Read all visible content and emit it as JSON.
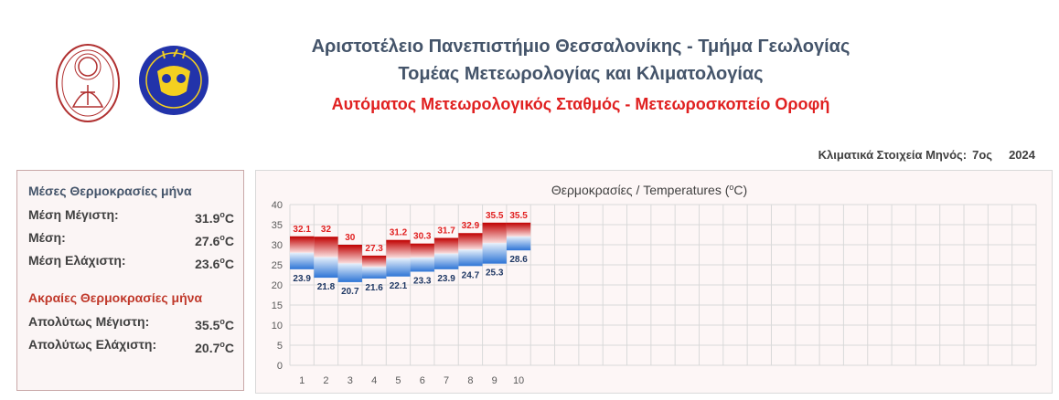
{
  "header": {
    "line1": "Αριστοτέλειο Πανεπιστήμιο Θεσσαλονίκης - Τμήμα Γεωλογίας",
    "line2": "Τομέας Μετεωρολογίας και Κλιματολογίας",
    "line3": "Αυτόματος Μετεωρολογικός Σταθμός - Μετεωροσκοπείο Οροφή"
  },
  "period": {
    "label": "Κλιματικά Στοιχεία Μηνός:",
    "month": "7ος",
    "year": "2024"
  },
  "stats": {
    "mean_title": "Μέσες Θερμοκρασίες μήνα",
    "mean_max_label": "Μέση Μέγιστη:",
    "mean_max_value": "31.9",
    "mean_label": "Μέση:",
    "mean_value": "27.6",
    "mean_min_label": "Μέση Ελάχιστη:",
    "mean_min_value": "23.6",
    "extreme_title": "Ακραίες Θερμοκρασίες μήνα",
    "abs_max_label": "Απολύτως Μέγιστη:",
    "abs_max_value": "35.5",
    "abs_min_label": "Απολύτως Ελάχιστη:",
    "abs_min_value": "20.7",
    "unit_o": "o",
    "unit_c": "C"
  },
  "colors": {
    "max": "#e02020",
    "min": "#1f3864",
    "header": "#44546a"
  },
  "chart_data": {
    "type": "bar",
    "title_main": "Θερμοκρασίες / Temperatures (",
    "title_sup": "o",
    "title_end": "C)",
    "categories": [
      1,
      2,
      3,
      4,
      5,
      6,
      7,
      8,
      9,
      10
    ],
    "x_ticks": [
      1,
      2,
      3,
      4,
      5,
      6,
      7,
      8,
      9,
      10
    ],
    "max": [
      32.1,
      32,
      30,
      27.3,
      31.2,
      30.3,
      31.7,
      32.9,
      35.5,
      35.5
    ],
    "min": [
      23.9,
      21.8,
      20.7,
      21.6,
      22.1,
      23.3,
      23.9,
      24.7,
      25.3,
      28.6
    ],
    "max_labels": [
      "32.1",
      "32",
      "30",
      "27.3",
      "31.2",
      "30.3",
      "31.7",
      "32.9",
      "35.5",
      "35.5"
    ],
    "min_labels": [
      "23.9",
      "21.8",
      "20.7",
      "21.6",
      "22.1",
      "23.3",
      "23.9",
      "24.7",
      "25.3",
      "28.6"
    ],
    "ylim": [
      0,
      40
    ],
    "y_ticks": [
      0,
      5,
      10,
      15,
      20,
      25,
      30,
      35,
      40
    ],
    "x_slots": 31,
    "grid": true
  }
}
